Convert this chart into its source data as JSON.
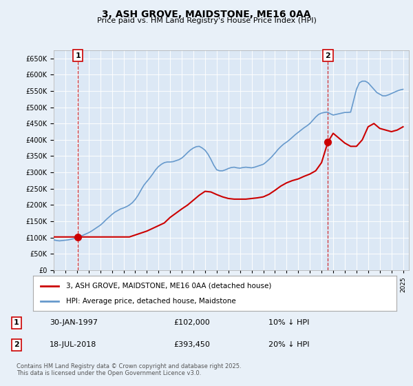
{
  "title": "3, ASH GROVE, MAIDSTONE, ME16 0AA",
  "subtitle": "Price paid vs. HM Land Registry's House Price Index (HPI)",
  "background_color": "#e8f0f8",
  "plot_bg_color": "#dce8f5",
  "ylim": [
    0,
    675000
  ],
  "yticks": [
    0,
    50000,
    100000,
    150000,
    200000,
    250000,
    300000,
    350000,
    400000,
    450000,
    500000,
    550000,
    600000,
    650000
  ],
  "xlim_start": 1995.0,
  "xlim_end": 2025.5,
  "xticks": [
    1995,
    1996,
    1997,
    1998,
    1999,
    2000,
    2001,
    2002,
    2003,
    2004,
    2005,
    2006,
    2007,
    2008,
    2009,
    2010,
    2011,
    2012,
    2013,
    2014,
    2015,
    2016,
    2017,
    2018,
    2019,
    2020,
    2021,
    2022,
    2023,
    2024,
    2025
  ],
  "hpi_color": "#6699cc",
  "price_color": "#cc0000",
  "marker1_date": 1997.08,
  "marker1_price": 102000,
  "marker1_label": "1",
  "marker2_date": 2018.55,
  "marker2_price": 393450,
  "marker2_label": "2",
  "vline1_x": 1997.08,
  "vline2_x": 2018.55,
  "legend_house": "3, ASH GROVE, MAIDSTONE, ME16 0AA (detached house)",
  "legend_hpi": "HPI: Average price, detached house, Maidstone",
  "annotation1_date": "30-JAN-1997",
  "annotation1_price": "£102,000",
  "annotation1_hpi": "10% ↓ HPI",
  "annotation2_date": "18-JUL-2018",
  "annotation2_price": "£393,450",
  "annotation2_hpi": "20% ↓ HPI",
  "footer": "Contains HM Land Registry data © Crown copyright and database right 2025.\nThis data is licensed under the Open Government Licence v3.0.",
  "hpi_data_x": [
    1995.0,
    1995.25,
    1995.5,
    1995.75,
    1996.0,
    1996.25,
    1996.5,
    1996.75,
    1997.0,
    1997.25,
    1997.5,
    1997.75,
    1998.0,
    1998.25,
    1998.5,
    1998.75,
    1999.0,
    1999.25,
    1999.5,
    1999.75,
    2000.0,
    2000.25,
    2000.5,
    2000.75,
    2001.0,
    2001.25,
    2001.5,
    2001.75,
    2002.0,
    2002.25,
    2002.5,
    2002.75,
    2003.0,
    2003.25,
    2003.5,
    2003.75,
    2004.0,
    2004.25,
    2004.5,
    2004.75,
    2005.0,
    2005.25,
    2005.5,
    2005.75,
    2006.0,
    2006.25,
    2006.5,
    2006.75,
    2007.0,
    2007.25,
    2007.5,
    2007.75,
    2008.0,
    2008.25,
    2008.5,
    2008.75,
    2009.0,
    2009.25,
    2009.5,
    2009.75,
    2010.0,
    2010.25,
    2010.5,
    2010.75,
    2011.0,
    2011.25,
    2011.5,
    2011.75,
    2012.0,
    2012.25,
    2012.5,
    2012.75,
    2013.0,
    2013.25,
    2013.5,
    2013.75,
    2014.0,
    2014.25,
    2014.5,
    2014.75,
    2015.0,
    2015.25,
    2015.5,
    2015.75,
    2016.0,
    2016.25,
    2016.5,
    2016.75,
    2017.0,
    2017.25,
    2017.5,
    2017.75,
    2018.0,
    2018.25,
    2018.5,
    2018.75,
    2019.0,
    2019.25,
    2019.5,
    2019.75,
    2020.0,
    2020.25,
    2020.5,
    2020.75,
    2021.0,
    2021.25,
    2021.5,
    2021.75,
    2022.0,
    2022.25,
    2022.5,
    2022.75,
    2023.0,
    2023.25,
    2023.5,
    2023.75,
    2024.0,
    2024.25,
    2024.5,
    2024.75,
    2025.0
  ],
  "hpi_data_y": [
    93000,
    91000,
    90000,
    91000,
    92000,
    93000,
    95000,
    97000,
    100000,
    103000,
    107000,
    111000,
    115000,
    120000,
    126000,
    132000,
    138000,
    146000,
    155000,
    163000,
    171000,
    178000,
    183000,
    188000,
    191000,
    195000,
    200000,
    207000,
    217000,
    230000,
    246000,
    261000,
    272000,
    283000,
    295000,
    308000,
    318000,
    325000,
    330000,
    332000,
    332000,
    333000,
    336000,
    339000,
    344000,
    352000,
    361000,
    369000,
    375000,
    379000,
    380000,
    375000,
    368000,
    356000,
    340000,
    322000,
    308000,
    305000,
    305000,
    308000,
    312000,
    315000,
    316000,
    314000,
    313000,
    315000,
    316000,
    315000,
    314000,
    316000,
    319000,
    322000,
    325000,
    332000,
    340000,
    349000,
    359000,
    370000,
    379000,
    387000,
    393000,
    400000,
    408000,
    416000,
    423000,
    430000,
    437000,
    443000,
    450000,
    460000,
    470000,
    478000,
    482000,
    484000,
    485000,
    480000,
    476000,
    478000,
    480000,
    482000,
    484000,
    484000,
    485000,
    520000,
    555000,
    575000,
    580000,
    580000,
    575000,
    565000,
    555000,
    545000,
    540000,
    535000,
    535000,
    538000,
    542000,
    546000,
    550000,
    553000,
    555000
  ],
  "price_data_x": [
    1997.08,
    2018.55
  ],
  "price_data_y": [
    102000,
    393450
  ],
  "price_line_x": [
    1995.0,
    1997.08,
    1997.08,
    2000.0,
    2001.5,
    2003.0,
    2004.5,
    2005.0,
    2005.5,
    2006.0,
    2006.5,
    2007.0,
    2007.5,
    2008.0,
    2008.5,
    2009.0,
    2009.5,
    2010.0,
    2010.5,
    2011.0,
    2011.5,
    2012.0,
    2012.5,
    2013.0,
    2013.5,
    2014.0,
    2014.5,
    2015.0,
    2015.5,
    2016.0,
    2016.5,
    2017.0,
    2017.5,
    2018.0,
    2018.55,
    2019.0,
    2019.5,
    2020.0,
    2020.5,
    2021.0,
    2021.5,
    2022.0,
    2022.5,
    2023.0,
    2023.5,
    2024.0,
    2024.5,
    2025.0
  ],
  "price_line_y": [
    102000,
    102000,
    102000,
    102000,
    102000,
    120000,
    145000,
    162000,
    175000,
    188000,
    200000,
    215000,
    230000,
    242000,
    240000,
    232000,
    225000,
    220000,
    218000,
    218000,
    218000,
    220000,
    222000,
    225000,
    233000,
    245000,
    258000,
    268000,
    275000,
    280000,
    288000,
    295000,
    305000,
    330000,
    393450,
    420000,
    405000,
    390000,
    380000,
    380000,
    400000,
    440000,
    450000,
    435000,
    430000,
    425000,
    430000,
    440000
  ]
}
